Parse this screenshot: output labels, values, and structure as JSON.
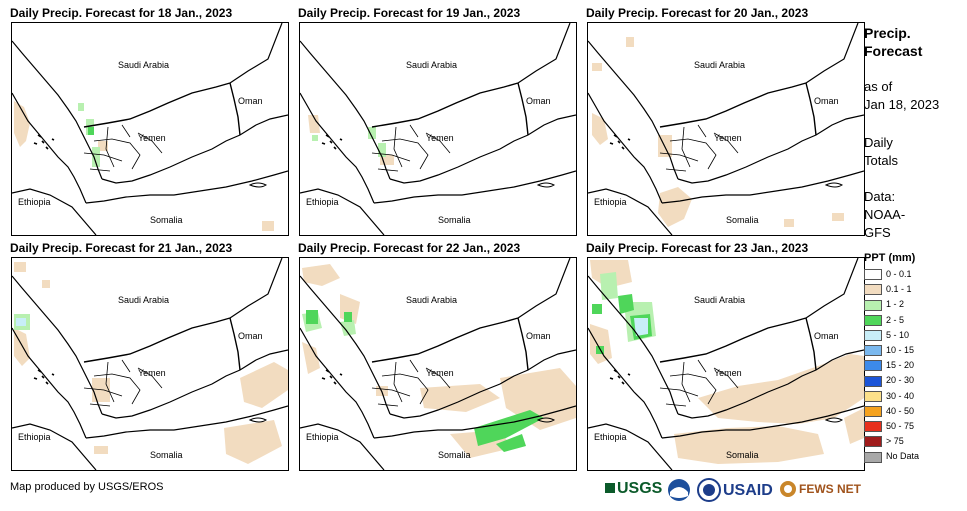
{
  "panels": [
    {
      "title": "Daily Precip. Forecast for 18 Jan., 2023"
    },
    {
      "title": "Daily Precip. Forecast for 19 Jan., 2023"
    },
    {
      "title": "Daily Precip. Forecast for 20 Jan., 2023"
    },
    {
      "title": "Daily Precip. Forecast for 21 Jan., 2023"
    },
    {
      "title": "Daily Precip. Forecast for 22 Jan., 2023"
    },
    {
      "title": "Daily Precip. Forecast for 23 Jan., 2023"
    }
  ],
  "map_labels": {
    "saudi": "Saudi Arabia",
    "oman": "Oman",
    "yemen": "Yemen",
    "ethiopia": "Ethiopia",
    "somalia": "Somalia"
  },
  "sidebar": {
    "heading_line1": "Precip.",
    "heading_line2": "Forecast",
    "asof_line1": "as of",
    "asof_line2": "Jan 18, 2023",
    "daily_line1": "Daily",
    "daily_line2": "Totals",
    "data_line1": "Data:",
    "data_line2": "NOAA-",
    "data_line3": "GFS"
  },
  "legend": {
    "title": "PPT (mm)",
    "items": [
      {
        "label": "0 - 0.1",
        "color": "#ffffff"
      },
      {
        "label": "0.1 - 1",
        "color": "#f2dcc0"
      },
      {
        "label": "1 - 2",
        "color": "#b8f0b0"
      },
      {
        "label": "2 - 5",
        "color": "#4fd65a"
      },
      {
        "label": "5 - 10",
        "color": "#c8eef8"
      },
      {
        "label": "10 - 15",
        "color": "#7ab8ee"
      },
      {
        "label": "15 - 20",
        "color": "#3c8aea"
      },
      {
        "label": "20 - 30",
        "color": "#1c55d8"
      },
      {
        "label": "30 - 40",
        "color": "#fce08a"
      },
      {
        "label": "40 - 50",
        "color": "#f5a21e"
      },
      {
        "label": "50 - 75",
        "color": "#e8301c"
      },
      {
        "label": "> 75",
        "color": "#a01c1c"
      },
      {
        "label": "No Data",
        "color": "#a8a8a8"
      }
    ]
  },
  "credit": "Map produced by USGS/EROS",
  "logos": {
    "usgs": "USGS",
    "usaid": "USAID",
    "fewsnet": "FEWS NET"
  }
}
